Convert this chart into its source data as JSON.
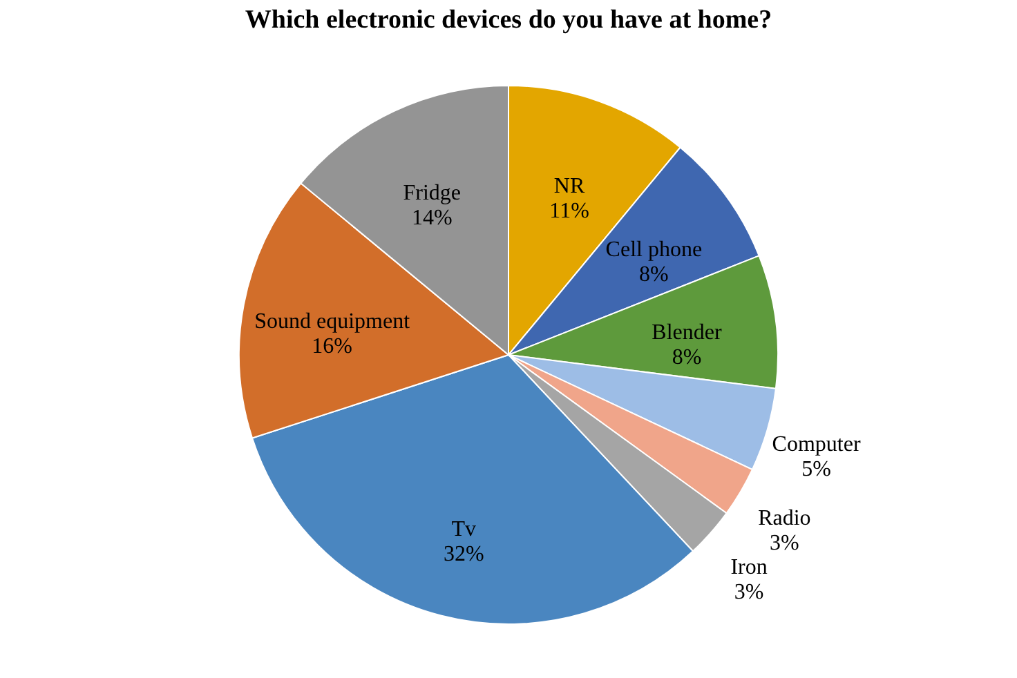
{
  "chart_data": {
    "type": "pie",
    "title": "Which electronic devices do you have at home?",
    "categories": [
      "NR",
      "Cell phone",
      "Blender",
      "Computer",
      "Radio",
      "Iron",
      "Tv",
      "Sound equipment",
      "Fridge"
    ],
    "values": [
      11,
      8,
      8,
      5,
      3,
      3,
      32,
      16,
      14
    ],
    "value_labels": [
      "11%",
      "8%",
      "8%",
      "5%",
      "3%",
      "3%",
      "32%",
      "16%",
      "14%"
    ],
    "colors": [
      "#e3a600",
      "#3f67b0",
      "#5e9a3c",
      "#9dbde6",
      "#f0a58a",
      "#a5a5a5",
      "#4a86c0",
      "#d26e2a",
      "#949494"
    ],
    "legend": false
  }
}
